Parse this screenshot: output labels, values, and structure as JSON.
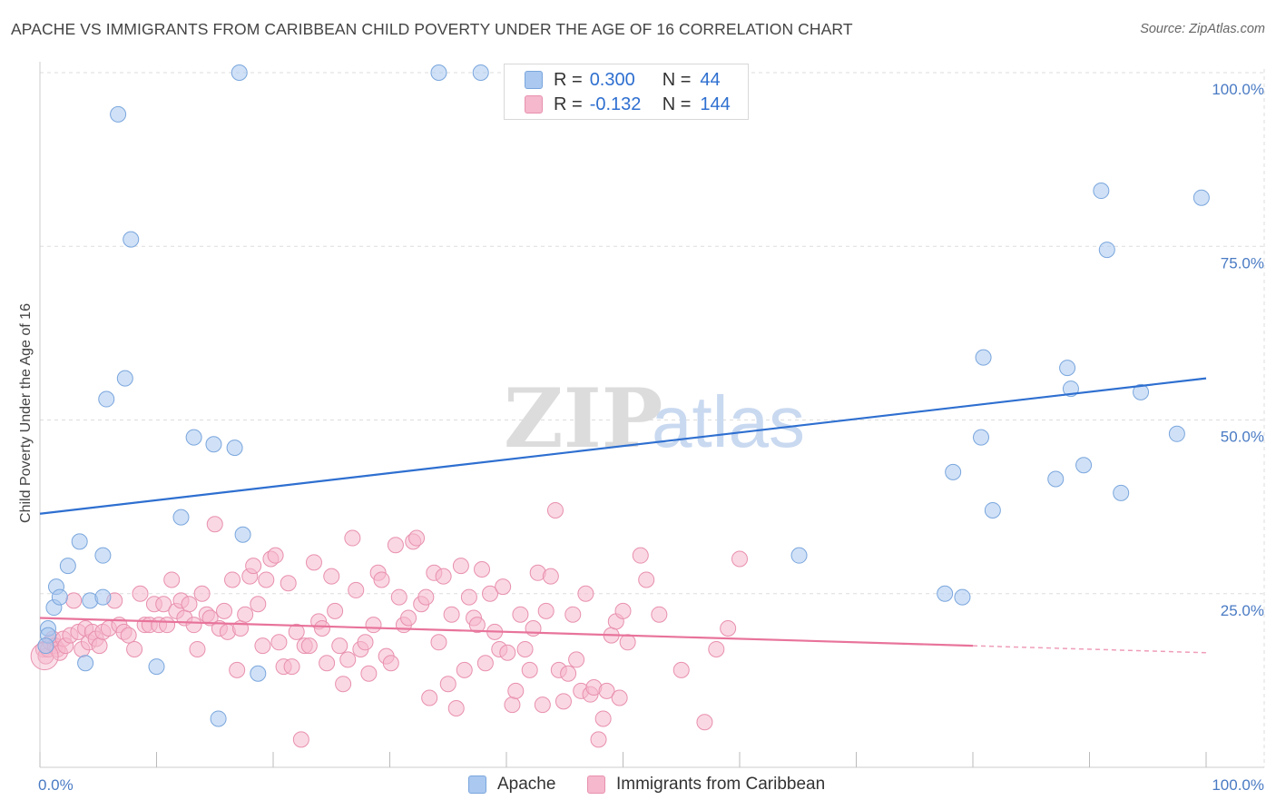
{
  "title": "APACHE VS IMMIGRANTS FROM CARIBBEAN CHILD POVERTY UNDER THE AGE OF 16 CORRELATION CHART",
  "source": "Source: ZipAtlas.com",
  "watermark": {
    "zip": "ZIP",
    "atlas": "atlas"
  },
  "colors": {
    "apache_fill": "#aac8f0",
    "apache_stroke": "#7aa6dd",
    "apache_line": "#2e6fd0",
    "carib_fill": "#f5b8cc",
    "carib_stroke": "#e890ae",
    "carib_line": "#e8739b",
    "grid": "#dddddd",
    "tick_text": "#4a7bc4"
  },
  "legend": {
    "rows": [
      {
        "r_label": "R =",
        "r_value": "0.300",
        "n_label": "N =",
        "n_value": "44"
      },
      {
        "r_label": "R =",
        "r_value": "-0.132",
        "n_label": "N =",
        "n_value": "144"
      }
    ]
  },
  "chart_data": {
    "type": "scatter",
    "title": "APACHE VS IMMIGRANTS FROM CARIBBEAN CHILD POVERTY UNDER THE AGE OF 16 CORRELATION CHART",
    "xlabel": "",
    "ylabel": "Child Poverty Under the Age of 16",
    "xlim": [
      0,
      100
    ],
    "ylim": [
      0,
      100
    ],
    "x_tick_labels": [
      "0.0%",
      "100.0%"
    ],
    "y_ticks": [
      25,
      50,
      75,
      100
    ],
    "y_tick_labels": [
      "25.0%",
      "50.0%",
      "75.0%",
      "100.0%"
    ],
    "grid": true,
    "legend_position": "top-center",
    "series": [
      {
        "name": "Apache",
        "color": "#aac8f0",
        "trend": {
          "x": [
            0,
            100
          ],
          "y": [
            36.5,
            56
          ]
        },
        "points": [
          [
            0.7,
            20
          ],
          [
            0.7,
            19
          ],
          [
            1.2,
            23
          ],
          [
            1.4,
            26
          ],
          [
            1.7,
            24.5
          ],
          [
            2.4,
            29
          ],
          [
            3.4,
            32.5
          ],
          [
            3.9,
            15
          ],
          [
            4.3,
            24
          ],
          [
            5.4,
            24.5
          ],
          [
            5.4,
            30.5
          ],
          [
            5.7,
            53
          ],
          [
            6.7,
            94
          ],
          [
            7.3,
            56
          ],
          [
            7.8,
            76
          ],
          [
            10,
            14.5
          ],
          [
            12.1,
            36
          ],
          [
            13.2,
            47.5
          ],
          [
            14.9,
            46.5
          ],
          [
            15.3,
            7
          ],
          [
            16.7,
            46
          ],
          [
            17.1,
            100
          ],
          [
            17.4,
            33.5
          ],
          [
            18.7,
            13.5
          ],
          [
            34.2,
            100
          ],
          [
            37.8,
            100
          ],
          [
            65.1,
            30.5
          ],
          [
            77.6,
            25
          ],
          [
            78.3,
            42.5
          ],
          [
            79.1,
            24.5
          ],
          [
            80.7,
            47.5
          ],
          [
            80.9,
            59
          ],
          [
            81.7,
            37
          ],
          [
            87.1,
            41.5
          ],
          [
            88.1,
            57.5
          ],
          [
            88.4,
            54.5
          ],
          [
            89.5,
            43.5
          ],
          [
            91,
            83
          ],
          [
            91.5,
            74.5
          ],
          [
            92.7,
            39.5
          ],
          [
            94.4,
            54
          ],
          [
            97.5,
            48
          ],
          [
            99.6,
            82
          ],
          [
            0.5,
            17.5
          ]
        ]
      },
      {
        "name": "Immigrants from Caribbean",
        "color": "#f5b8cc",
        "trend": {
          "x": [
            0,
            80
          ],
          "y": [
            21.5,
            17.5
          ]
        },
        "trend_dashed": {
          "x": [
            80,
            100
          ],
          "y": [
            17.5,
            16.5
          ]
        },
        "points": [
          [
            0.3,
            17
          ],
          [
            0.5,
            16
          ],
          [
            0.7,
            17
          ],
          [
            0.9,
            18
          ],
          [
            1.1,
            18.5
          ],
          [
            1.3,
            17.5
          ],
          [
            1.5,
            17
          ],
          [
            1.7,
            16.5
          ],
          [
            2,
            18.5
          ],
          [
            2.2,
            17.5
          ],
          [
            2.6,
            19
          ],
          [
            2.9,
            24
          ],
          [
            3.3,
            19.5
          ],
          [
            3.6,
            17
          ],
          [
            3.9,
            20
          ],
          [
            4.2,
            18
          ],
          [
            4.5,
            19.5
          ],
          [
            4.8,
            18.5
          ],
          [
            5.1,
            17.5
          ],
          [
            5.4,
            19.5
          ],
          [
            5.9,
            20
          ],
          [
            6.4,
            24
          ],
          [
            6.8,
            20.5
          ],
          [
            7.2,
            19.5
          ],
          [
            7.6,
            19
          ],
          [
            8.1,
            17
          ],
          [
            8.6,
            25
          ],
          [
            9,
            20.5
          ],
          [
            9.4,
            20.5
          ],
          [
            9.8,
            23.5
          ],
          [
            10.2,
            20.5
          ],
          [
            10.6,
            23.5
          ],
          [
            10.9,
            20.5
          ],
          [
            11.3,
            27
          ],
          [
            11.7,
            22.5
          ],
          [
            12.1,
            24
          ],
          [
            12.4,
            21.5
          ],
          [
            12.8,
            23.5
          ],
          [
            13.2,
            20.5
          ],
          [
            13.5,
            17
          ],
          [
            13.9,
            25
          ],
          [
            14.3,
            22
          ],
          [
            14.6,
            21.5
          ],
          [
            15,
            35
          ],
          [
            15.4,
            20
          ],
          [
            15.8,
            22.5
          ],
          [
            16.1,
            19.5
          ],
          [
            16.5,
            27
          ],
          [
            16.9,
            14
          ],
          [
            17.2,
            20
          ],
          [
            17.6,
            22
          ],
          [
            18,
            27.5
          ],
          [
            18.3,
            29
          ],
          [
            18.7,
            23.5
          ],
          [
            19.1,
            17.5
          ],
          [
            19.4,
            27
          ],
          [
            19.8,
            30
          ],
          [
            20.2,
            30.5
          ],
          [
            20.5,
            18
          ],
          [
            20.9,
            14.5
          ],
          [
            21.3,
            26.5
          ],
          [
            21.6,
            14.5
          ],
          [
            22,
            19.5
          ],
          [
            22.4,
            4
          ],
          [
            22.7,
            17.5
          ],
          [
            23.1,
            17.5
          ],
          [
            23.5,
            29.5
          ],
          [
            23.9,
            21
          ],
          [
            24.2,
            20
          ],
          [
            24.6,
            15
          ],
          [
            25,
            27.5
          ],
          [
            25.3,
            22.5
          ],
          [
            25.7,
            17.5
          ],
          [
            26,
            12
          ],
          [
            26.4,
            15.5
          ],
          [
            26.8,
            33
          ],
          [
            27.1,
            25.5
          ],
          [
            27.5,
            17
          ],
          [
            27.9,
            18
          ],
          [
            28.2,
            13.5
          ],
          [
            28.6,
            20.5
          ],
          [
            29,
            28
          ],
          [
            29.3,
            27
          ],
          [
            29.7,
            16
          ],
          [
            30.1,
            15
          ],
          [
            30.5,
            32
          ],
          [
            30.8,
            24.5
          ],
          [
            31.2,
            20.5
          ],
          [
            31.6,
            21.5
          ],
          [
            32,
            32.5
          ],
          [
            32.3,
            33
          ],
          [
            32.7,
            23.5
          ],
          [
            33.1,
            24.5
          ],
          [
            33.4,
            10
          ],
          [
            33.8,
            28
          ],
          [
            34.2,
            18
          ],
          [
            34.6,
            27.5
          ],
          [
            35,
            12
          ],
          [
            35.3,
            22
          ],
          [
            35.7,
            8.5
          ],
          [
            36.1,
            29
          ],
          [
            36.4,
            14
          ],
          [
            36.8,
            24.5
          ],
          [
            37.2,
            21.5
          ],
          [
            37.5,
            20.5
          ],
          [
            37.9,
            28.5
          ],
          [
            38.2,
            15
          ],
          [
            38.6,
            25
          ],
          [
            39,
            19.5
          ],
          [
            39.4,
            17
          ],
          [
            39.7,
            26
          ],
          [
            40.1,
            16.5
          ],
          [
            40.5,
            9
          ],
          [
            40.8,
            11
          ],
          [
            41.2,
            22
          ],
          [
            41.6,
            17
          ],
          [
            42,
            14
          ],
          [
            42.3,
            20
          ],
          [
            42.7,
            28
          ],
          [
            43.1,
            9
          ],
          [
            43.4,
            22.5
          ],
          [
            43.8,
            27.5
          ],
          [
            44.2,
            37
          ],
          [
            44.5,
            14
          ],
          [
            44.9,
            9.5
          ],
          [
            45.3,
            13.5
          ],
          [
            45.7,
            22
          ],
          [
            46,
            15.5
          ],
          [
            46.4,
            11
          ],
          [
            46.8,
            25
          ],
          [
            47.2,
            10.5
          ],
          [
            47.5,
            11.5
          ],
          [
            47.9,
            4
          ],
          [
            48.3,
            7
          ],
          [
            48.6,
            11
          ],
          [
            49,
            19
          ],
          [
            49.4,
            21
          ],
          [
            49.7,
            10
          ],
          [
            50,
            22.5
          ],
          [
            50.4,
            18
          ],
          [
            51.5,
            30.5
          ],
          [
            52,
            27
          ],
          [
            53.1,
            22
          ],
          [
            55,
            14
          ],
          [
            57,
            6.5
          ],
          [
            58,
            17
          ],
          [
            59,
            20
          ],
          [
            60,
            30
          ]
        ]
      }
    ]
  },
  "bottom_legend": [
    {
      "label": "Apache"
    },
    {
      "label": "Immigrants from Caribbean"
    }
  ]
}
